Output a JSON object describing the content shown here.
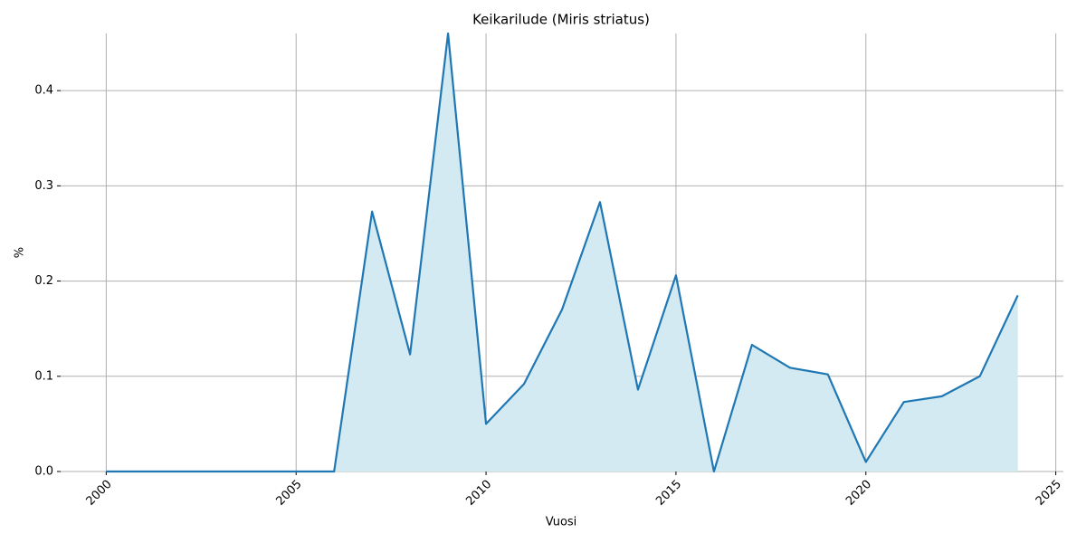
{
  "chart_data": {
    "type": "line",
    "title": "Keikarilude (Miris striatus)",
    "x_label": "Vuosi",
    "y_label": "%",
    "x": [
      2000,
      2001,
      2002,
      2003,
      2004,
      2005,
      2006,
      2007,
      2008,
      2009,
      2010,
      2011,
      2012,
      2013,
      2014,
      2015,
      2016,
      2017,
      2018,
      2019,
      2020,
      2021,
      2022,
      2023,
      2024
    ],
    "series": [
      {
        "color": "#1f77b4",
        "fill_color": "#d4eaf2",
        "values": [
          0,
          0,
          0,
          0,
          0,
          0,
          0,
          0.273,
          0.123,
          0.46,
          0.05,
          0.092,
          0.17,
          0.283,
          0.086,
          0.206,
          0,
          0.133,
          0.109,
          0.102,
          0.01,
          0.073,
          0.079,
          0.1,
          0.185
        ]
      }
    ],
    "xlim": [
      1998.8,
      2025.2
    ],
    "xticks": [
      2000,
      2005,
      2010,
      2015,
      2020,
      2025
    ],
    "ylim": [
      0,
      0.46
    ],
    "yticks": [
      {
        "value": 0,
        "label": "0.0"
      },
      0.1,
      0.2,
      0.3,
      0.4
    ],
    "grid": true
  }
}
